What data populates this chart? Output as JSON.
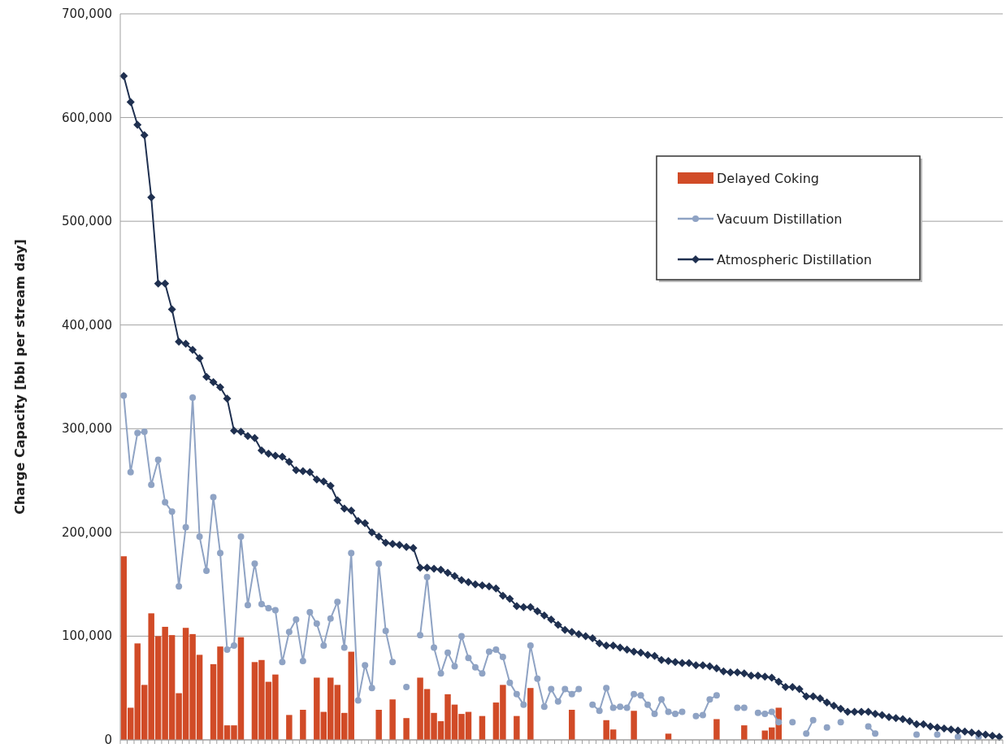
{
  "chart_data": {
    "type": "bar",
    "ylabel": "Charge Capacity [bbl per stream day]",
    "categories": [
      null,
      null,
      null,
      null,
      null,
      null,
      null,
      null,
      null,
      null,
      null,
      null,
      null,
      null,
      null,
      null,
      null,
      null,
      null,
      null,
      null,
      null,
      null,
      null,
      null,
      null,
      null,
      null,
      null,
      null,
      null,
      null,
      null,
      null,
      null,
      null,
      null,
      null,
      null,
      null,
      null,
      null,
      null,
      null,
      null,
      null,
      null,
      null,
      null,
      null,
      null,
      null,
      null,
      null,
      null,
      null,
      null,
      null,
      null,
      null,
      null,
      null,
      null,
      null,
      null,
      null,
      null,
      null,
      null,
      null,
      null,
      null,
      null,
      null,
      null,
      null,
      null,
      null,
      null,
      null,
      null,
      null,
      null,
      null,
      null,
      null,
      null,
      null,
      null,
      null,
      null,
      null,
      null,
      null,
      null,
      null,
      null,
      null,
      null,
      null,
      null,
      null,
      null,
      null,
      null,
      null,
      null,
      null,
      null,
      null,
      null,
      null,
      null,
      null,
      null,
      null,
      null,
      null,
      null,
      null,
      null,
      null,
      null,
      null,
      null,
      null,
      null,
      null
    ],
    "series": [
      {
        "name": "Delayed Coking",
        "color": "#d14b27",
        "values": [
          177000,
          31000,
          93000,
          53000,
          122000,
          100000,
          109000,
          101000,
          45000,
          108000,
          102000,
          82000,
          null,
          73000,
          90000,
          14000,
          14000,
          99000,
          null,
          75000,
          77000,
          56000,
          63000,
          null,
          24000,
          null,
          29000,
          null,
          60000,
          27000,
          60000,
          53000,
          26000,
          85000,
          null,
          null,
          null,
          29000,
          null,
          39000,
          null,
          21000,
          null,
          60000,
          49000,
          26000,
          18000,
          44000,
          34000,
          25000,
          27000,
          null,
          23000,
          null,
          36000,
          53000,
          null,
          23000,
          null,
          50000,
          null,
          null,
          null,
          null,
          null,
          29000,
          null,
          null,
          null,
          null,
          19000,
          10000,
          null,
          null,
          28000,
          null,
          null,
          null,
          null,
          6000,
          null,
          null,
          null,
          null,
          null,
          null,
          20000,
          null,
          null,
          null,
          14000,
          null,
          null,
          9000,
          12000,
          31000,
          null,
          null,
          null,
          null,
          null,
          null,
          null,
          null,
          null,
          null,
          null,
          null,
          null,
          null,
          null,
          null,
          null,
          null,
          null,
          null,
          null,
          null,
          null,
          null,
          null,
          null,
          null,
          null,
          null,
          null,
          null,
          null
        ]
      },
      {
        "name": "Vacuum Distillation",
        "type": "line",
        "marker": "circle",
        "color": "#8fa3c4",
        "values": [
          332000,
          258000,
          296000,
          297000,
          246000,
          270000,
          229000,
          220000,
          148000,
          205000,
          330000,
          196000,
          163000,
          234000,
          180000,
          87000,
          91000,
          196000,
          130000,
          170000,
          131000,
          127000,
          125000,
          75000,
          104000,
          116000,
          76000,
          123000,
          112000,
          91000,
          117000,
          133000,
          89000,
          180000,
          38000,
          72000,
          50000,
          170000,
          105000,
          75000,
          null,
          51000,
          null,
          101000,
          157000,
          89000,
          64000,
          84000,
          71000,
          100000,
          79000,
          70000,
          64000,
          85000,
          87000,
          80000,
          55000,
          44000,
          34000,
          91000,
          59000,
          32000,
          49000,
          37000,
          49000,
          44000,
          49000,
          null,
          34000,
          28000,
          50000,
          31000,
          32000,
          31000,
          44000,
          43000,
          34000,
          25000,
          39000,
          27000,
          25000,
          27000,
          null,
          23000,
          24000,
          39000,
          43000,
          null,
          null,
          31000,
          31000,
          null,
          26000,
          25000,
          27000,
          17000,
          null,
          17000,
          null,
          6000,
          19000,
          null,
          12000,
          null,
          17000,
          null,
          null,
          null,
          13000,
          6000,
          null,
          null,
          null,
          null,
          null,
          5000,
          null,
          null,
          5000,
          null,
          null,
          3000,
          null,
          null,
          3000,
          null,
          null,
          null
        ]
      },
      {
        "name": "Atmospheric Distillation",
        "type": "line",
        "marker": "diamond",
        "color": "#1f3050",
        "values": [
          640000,
          615000,
          593000,
          583000,
          523000,
          440000,
          440000,
          415000,
          384000,
          382000,
          376000,
          368000,
          350000,
          345000,
          340000,
          329000,
          298000,
          297000,
          293000,
          291000,
          279000,
          276000,
          274000,
          273000,
          268000,
          260000,
          259000,
          258000,
          251000,
          249000,
          245000,
          231000,
          223000,
          221000,
          211000,
          209000,
          200000,
          196000,
          190000,
          189000,
          188000,
          186000,
          185000,
          166000,
          166000,
          165000,
          164000,
          161000,
          158000,
          154000,
          152000,
          150000,
          149000,
          148000,
          146000,
          139000,
          136000,
          129000,
          128000,
          128000,
          124000,
          120000,
          116000,
          111000,
          106000,
          104000,
          102000,
          100000,
          98000,
          93000,
          91000,
          91000,
          89000,
          87000,
          85000,
          84000,
          82000,
          81000,
          77000,
          76000,
          75000,
          74000,
          74000,
          72000,
          72000,
          71000,
          69000,
          66000,
          65000,
          65000,
          64000,
          62000,
          62000,
          61000,
          60000,
          56000,
          51000,
          51000,
          49000,
          42000,
          42000,
          40000,
          36000,
          33000,
          30000,
          27000,
          27000,
          27000,
          27000,
          25000,
          24000,
          22000,
          21000,
          20000,
          18000,
          15000,
          15000,
          13000,
          12000,
          11000,
          10000,
          9000,
          8000,
          7000,
          6000,
          5000,
          4000,
          3000
        ]
      }
    ],
    "ylim": [
      0,
      700000
    ],
    "yticks": [
      {
        "value": 0,
        "label": "0"
      },
      {
        "value": 100000,
        "label": "100,000"
      },
      {
        "value": 200000,
        "label": "200,000"
      },
      {
        "value": 300000,
        "label": "300,000"
      },
      {
        "value": 400000,
        "label": "400,000"
      },
      {
        "value": 500000,
        "label": "500,000"
      },
      {
        "value": 600000,
        "label": "600,000"
      },
      {
        "value": 700000,
        "label": "700,000"
      }
    ],
    "grid": "y",
    "legend": "top right"
  }
}
